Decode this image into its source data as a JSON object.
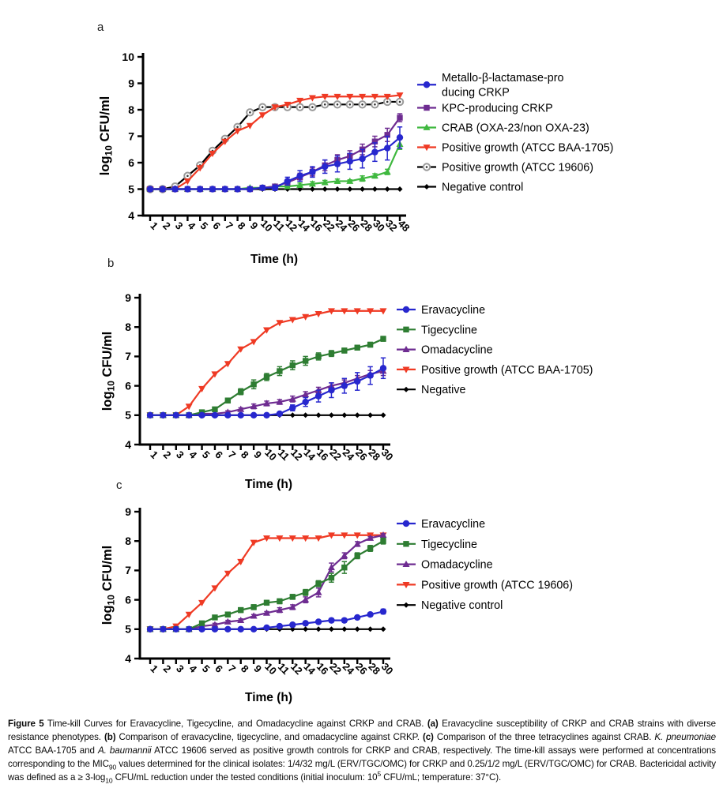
{
  "page": {
    "background": "#ffffff",
    "panels": [
      {
        "letter": "a"
      },
      {
        "letter": "b"
      },
      {
        "letter": "c"
      }
    ]
  },
  "chart_data": [
    {
      "id": "a",
      "type": "line",
      "title": "",
      "xlabel": "Time (h)",
      "ylabel_parts": {
        "pre": "log",
        "sub": "10",
        "post": " CFU/ml"
      },
      "x_categories": [
        "1",
        "2",
        "3",
        "4",
        "5",
        "6",
        "7",
        "8",
        "9",
        "10",
        "11",
        "12",
        "14",
        "16",
        "22",
        "24",
        "26",
        "28",
        "30",
        "32",
        "48"
      ],
      "ylim": [
        4,
        10
      ],
      "yticks": [
        4,
        5,
        6,
        7,
        8,
        9,
        10
      ],
      "grid": false,
      "legend_position": "right",
      "series": [
        {
          "name": [
            "Metallo-β-lactamase-pro",
            "ducing CRKP"
          ],
          "color": "#2727CE",
          "marker": "circle",
          "values": [
            5,
            5,
            5,
            5,
            5,
            5,
            5,
            5,
            5,
            5.05,
            5.05,
            5.3,
            5.5,
            5.65,
            5.85,
            5.95,
            6.05,
            6.15,
            6.4,
            6.55,
            6.95
          ],
          "err": [
            0,
            0,
            0,
            0,
            0,
            0,
            0,
            0,
            0,
            0,
            0.1,
            0.15,
            0.2,
            0.2,
            0.25,
            0.3,
            0.3,
            0.35,
            0.35,
            0.45,
            0.4
          ]
        },
        {
          "name": "KPC-producing CRKP",
          "color": "#6E2C91",
          "marker": "square",
          "values": [
            5,
            5,
            5,
            5,
            5,
            5,
            5,
            5,
            5,
            5.05,
            5.1,
            5.25,
            5.45,
            5.65,
            5.9,
            6.1,
            6.25,
            6.5,
            6.8,
            7.05,
            7.7
          ],
          "err": [
            0,
            0,
            0,
            0,
            0,
            0,
            0,
            0,
            0,
            0,
            0.05,
            0.1,
            0.15,
            0.15,
            0.2,
            0.2,
            0.2,
            0.2,
            0.2,
            0.25,
            0.15
          ]
        },
        {
          "name": "CRAB (OXA-23/non OXA-23)",
          "color": "#3FB83F",
          "marker": "triangle-up",
          "values": [
            5,
            5,
            5,
            5,
            5,
            5,
            5,
            5,
            5.05,
            5.05,
            5.1,
            5.1,
            5.15,
            5.2,
            5.25,
            5.3,
            5.3,
            5.4,
            5.5,
            5.65,
            6.7
          ],
          "err": [
            0,
            0,
            0,
            0,
            0,
            0,
            0,
            0,
            0,
            0.05,
            0.08,
            0.05,
            0.08,
            0.08,
            0.08,
            0.08,
            0.05,
            0.1,
            0.08,
            0.1,
            0.2
          ]
        },
        {
          "name": "Positive growth (ATCC BAA-1705)",
          "color": "#EF3A24",
          "marker": "triangle-down",
          "values": [
            5,
            5,
            5,
            5.3,
            5.8,
            6.35,
            6.8,
            7.2,
            7.4,
            7.8,
            8.1,
            8.2,
            8.35,
            8.45,
            8.5,
            8.5,
            8.5,
            8.5,
            8.5,
            8.5,
            8.55
          ]
        },
        {
          "name": "Positive growth (ATCC 19606)",
          "color": "#9A9A9A",
          "line_color": "#000000",
          "marker": "circle-open",
          "values": [
            5,
            5,
            5.1,
            5.5,
            5.9,
            6.45,
            6.9,
            7.35,
            7.9,
            8.1,
            8.1,
            8.1,
            8.1,
            8.1,
            8.2,
            8.2,
            8.2,
            8.2,
            8.2,
            8.3,
            8.3
          ]
        },
        {
          "name": "Negative control",
          "color": "#000000",
          "marker": "diamond",
          "values": [
            5,
            5,
            5,
            5,
            5,
            5,
            5,
            5,
            5,
            5,
            5,
            5,
            5,
            5,
            5,
            5,
            5,
            5,
            5,
            5,
            5
          ]
        }
      ]
    },
    {
      "id": "b",
      "type": "line",
      "title": "",
      "xlabel": "Time (h)",
      "ylabel_parts": {
        "pre": "log",
        "sub": "10",
        "post": " CFU/ml"
      },
      "x_categories": [
        "1",
        "2",
        "3",
        "4",
        "5",
        "6",
        "7",
        "8",
        "9",
        "10",
        "11",
        "12",
        "14",
        "16",
        "22",
        "24",
        "26",
        "28",
        "30"
      ],
      "ylim": [
        4,
        9
      ],
      "yticks": [
        4,
        5,
        6,
        7,
        8,
        9
      ],
      "grid": false,
      "legend_position": "right",
      "series": [
        {
          "name": "Eravacycline",
          "color": "#2727CE",
          "marker": "circle",
          "values": [
            5,
            5,
            5,
            5,
            5,
            5,
            5,
            5,
            5,
            5,
            5.05,
            5.25,
            5.45,
            5.65,
            5.85,
            6.0,
            6.15,
            6.35,
            6.6
          ],
          "err": [
            0,
            0,
            0,
            0,
            0,
            0,
            0,
            0,
            0,
            0,
            0.05,
            0.1,
            0.15,
            0.2,
            0.25,
            0.25,
            0.3,
            0.3,
            0.35
          ]
        },
        {
          "name": "Tigecycline",
          "color": "#2E7D32",
          "marker": "square",
          "values": [
            5,
            5,
            5,
            5,
            5.1,
            5.2,
            5.5,
            5.8,
            6.05,
            6.3,
            6.5,
            6.7,
            6.85,
            7.0,
            7.1,
            7.2,
            7.3,
            7.4,
            7.6
          ],
          "err": [
            0,
            0,
            0,
            0,
            0,
            0.05,
            0.08,
            0.1,
            0.15,
            0.12,
            0.15,
            0.15,
            0.15,
            0.12,
            0.1,
            0.08,
            0.08,
            0.08,
            0.08
          ]
        },
        {
          "name": "Omadacycline",
          "color": "#6E2C91",
          "marker": "triangle-up",
          "values": [
            5,
            5,
            5,
            5,
            5.05,
            5.05,
            5.1,
            5.2,
            5.3,
            5.4,
            5.45,
            5.55,
            5.7,
            5.85,
            6.0,
            6.1,
            6.25,
            6.4,
            6.5
          ],
          "err": [
            0,
            0,
            0,
            0,
            0,
            0,
            0.05,
            0.05,
            0.08,
            0.08,
            0.08,
            0.1,
            0.1,
            0.1,
            0.1,
            0.1,
            0.1,
            0.12,
            0.15
          ]
        },
        {
          "name": "Positive growth (ATCC BAA-1705)",
          "color": "#EF3A24",
          "marker": "triangle-down",
          "values": [
            5,
            5,
            5,
            5.3,
            5.9,
            6.4,
            6.75,
            7.25,
            7.5,
            7.9,
            8.15,
            8.25,
            8.35,
            8.45,
            8.55,
            8.55,
            8.55,
            8.55,
            8.55
          ]
        },
        {
          "name": "Negative",
          "color": "#000000",
          "marker": "diamond",
          "values": [
            5,
            5,
            5,
            5,
            5,
            5,
            5,
            5,
            5,
            5,
            5,
            5,
            5,
            5,
            5,
            5,
            5,
            5,
            5
          ]
        }
      ]
    },
    {
      "id": "c",
      "type": "line",
      "title": "",
      "xlabel": "Time (h)",
      "ylabel_parts": {
        "pre": "log",
        "sub": "10",
        "post": " CFU/ml"
      },
      "x_categories": [
        "1",
        "2",
        "3",
        "4",
        "5",
        "6",
        "7",
        "8",
        "9",
        "10",
        "11",
        "12",
        "14",
        "16",
        "22",
        "24",
        "26",
        "28",
        "30"
      ],
      "ylim": [
        4,
        9
      ],
      "yticks": [
        4,
        5,
        6,
        7,
        8,
        9
      ],
      "grid": false,
      "legend_position": "right",
      "series": [
        {
          "name": "Eravacycline",
          "color": "#2727CE",
          "marker": "circle",
          "values": [
            5,
            5,
            5,
            5,
            5,
            5,
            5,
            5,
            5,
            5.05,
            5.1,
            5.15,
            5.2,
            5.25,
            5.3,
            5.3,
            5.4,
            5.5,
            5.6
          ],
          "err": [
            0,
            0,
            0,
            0,
            0,
            0,
            0,
            0,
            0,
            0,
            0,
            0.05,
            0.05,
            0.05,
            0.05,
            0.05,
            0.05,
            0.05,
            0.08
          ]
        },
        {
          "name": "Tigecycline",
          "color": "#2E7D32",
          "marker": "square",
          "values": [
            5,
            5,
            5,
            5,
            5.2,
            5.4,
            5.5,
            5.65,
            5.75,
            5.9,
            5.95,
            6.1,
            6.25,
            6.55,
            6.75,
            7.1,
            7.5,
            7.75,
            8.0
          ],
          "err": [
            0,
            0,
            0,
            0,
            0.05,
            0.05,
            0.08,
            0.08,
            0.08,
            0.08,
            0.08,
            0.08,
            0.1,
            0.1,
            0.15,
            0.2,
            0.1,
            0.1,
            0.1
          ]
        },
        {
          "name": "Omadacycline",
          "color": "#6E2C91",
          "marker": "triangle-up",
          "values": [
            5,
            5,
            5,
            5,
            5.1,
            5.15,
            5.25,
            5.3,
            5.45,
            5.55,
            5.65,
            5.75,
            6.0,
            6.25,
            7.1,
            7.5,
            7.9,
            8.1,
            8.2
          ],
          "err": [
            0,
            0,
            0,
            0,
            0.05,
            0.05,
            0.05,
            0.05,
            0.05,
            0.05,
            0.08,
            0.08,
            0.1,
            0.15,
            0.15,
            0.1,
            0.08,
            0.05,
            0.05
          ]
        },
        {
          "name": "Positive growth (ATCC 19606)",
          "color": "#EF3A24",
          "marker": "triangle-down",
          "values": [
            5,
            5,
            5.1,
            5.5,
            5.9,
            6.4,
            6.9,
            7.3,
            7.95,
            8.1,
            8.1,
            8.1,
            8.1,
            8.1,
            8.2,
            8.2,
            8.2,
            8.2,
            8.2
          ]
        },
        {
          "name": "Negative control",
          "color": "#000000",
          "marker": "diamond",
          "values": [
            5,
            5,
            5,
            5,
            5,
            5,
            5,
            5,
            5,
            5,
            5,
            5,
            5,
            5,
            5,
            5,
            5,
            5,
            5
          ]
        }
      ]
    }
  ],
  "caption": {
    "runs": [
      {
        "t": "Figure 5",
        "b": 1
      },
      {
        "t": " Time-kill Curves for Eravacycline, Tigecycline, and Omadacycline against CRKP and CRAB. "
      },
      {
        "t": "(a)",
        "b": 1
      },
      {
        "t": " Eravacycline susceptibility of CRKP and CRAB strains with diverse resistance phenotypes. "
      },
      {
        "t": "(b)",
        "b": 1
      },
      {
        "t": " Comparison of eravacycline, tigecycline, and omadacycline against CRKP. "
      },
      {
        "t": "(c)",
        "b": 1
      },
      {
        "t": " Comparison of the three tetracyclines against CRAB. "
      },
      {
        "t": "K. pneumoniae",
        "i": 1
      },
      {
        "t": " ATCC BAA-1705 and "
      },
      {
        "t": "A. baumannii",
        "i": 1
      },
      {
        "t": " ATCC 19606 served as positive growth controls for CRKP and CRAB, respectively. The time-kill assays were performed at concentrations corresponding to the MIC"
      },
      {
        "t": "90",
        "v": "sub"
      },
      {
        "t": " values determined for the clinical isolates: 1/4/32 mg/L (ERV/TGC/OMC) for CRKP and 0.25/1/2 mg/L (ERV/TGC/OMC) for CRAB. Bactericidal activity was defined as a ≥ 3-log"
      },
      {
        "t": "10",
        "v": "sub"
      },
      {
        "t": " CFU/mL reduction under the tested conditions (initial inoculum: 10"
      },
      {
        "t": "5",
        "v": "sup"
      },
      {
        "t": " CFU/mL; temperature: 37°C)."
      }
    ]
  }
}
